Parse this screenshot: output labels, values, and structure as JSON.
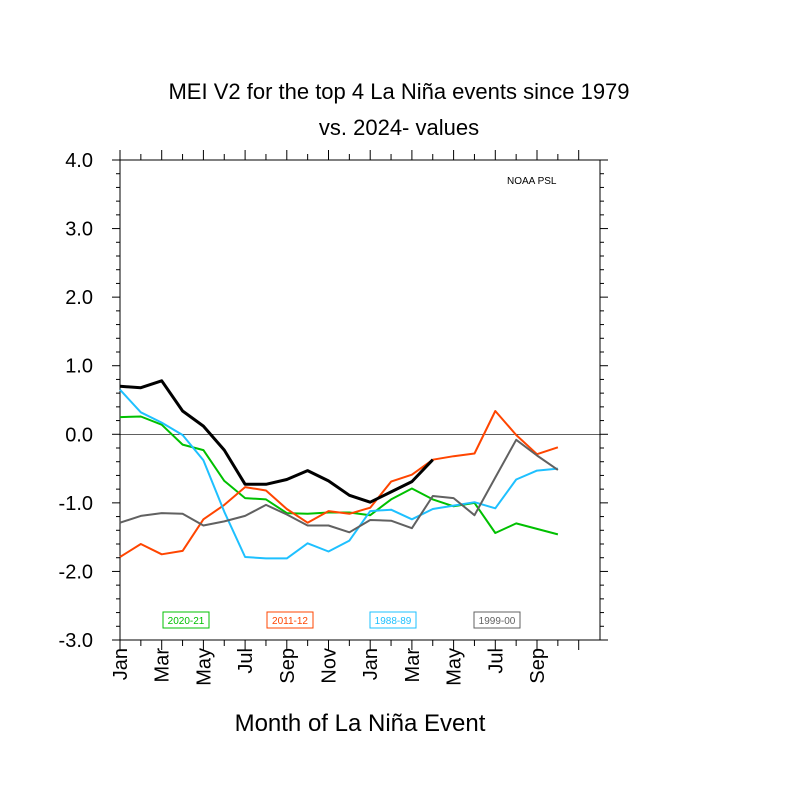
{
  "chart_data": {
    "type": "line",
    "title_line1": "MEI V2 for the top 4 La Niña events since 1979",
    "title_line2": "vs. 2024- values",
    "xlabel": "Month of La Niña Event",
    "credit": "NOAA PSL",
    "ylim": [
      -3.0,
      4.0
    ],
    "yticks": [
      "4.0",
      "3.0",
      "2.0",
      "1.0",
      "0.0",
      "-1.0",
      "-2.0",
      "-3.0"
    ],
    "x_tick_labels": [
      "Jan",
      "Mar",
      "May",
      "Jul",
      "Sep",
      "Nov",
      "Jan",
      "Mar",
      "May",
      "Jul",
      "Sep"
    ],
    "series": [
      {
        "name": "2020-21",
        "color": "#00c000",
        "values": [
          0.25,
          0.26,
          0.14,
          -0.15,
          -0.23,
          -0.68,
          -0.93,
          -0.95,
          -1.15,
          -1.16,
          -1.14,
          -1.14,
          -1.18,
          -0.95,
          -0.79,
          -0.95,
          -1.05,
          -1.0,
          -1.44,
          -1.3,
          -1.38,
          -1.46
        ]
      },
      {
        "name": "2011-12",
        "color": "#ff4500",
        "values": [
          -1.79,
          -1.6,
          -1.75,
          -1.7,
          -1.24,
          -1.03,
          -0.77,
          -0.82,
          -1.09,
          -1.29,
          -1.12,
          -1.16,
          -1.07,
          -0.69,
          -0.59,
          -0.37,
          -0.32,
          -0.28,
          0.34,
          -0.01,
          -0.29,
          -0.19
        ]
      },
      {
        "name": "1988-89",
        "color": "#1ec0ff",
        "values": [
          0.65,
          0.32,
          0.17,
          -0.01,
          -0.38,
          -1.13,
          -1.79,
          -1.81,
          -1.81,
          -1.59,
          -1.71,
          -1.55,
          -1.12,
          -1.1,
          -1.24,
          -1.09,
          -1.04,
          -0.99,
          -1.08,
          -0.66,
          -0.53,
          -0.5
        ]
      },
      {
        "name": "1999-00",
        "color": "#616161",
        "values": [
          -1.29,
          -1.19,
          -1.15,
          -1.16,
          -1.33,
          -1.27,
          -1.19,
          -1.03,
          -1.17,
          -1.33,
          -1.33,
          -1.43,
          -1.25,
          -1.26,
          -1.37,
          -0.9,
          -0.93,
          -1.18,
          -0.63,
          -0.08,
          -0.31,
          -0.52
        ]
      },
      {
        "name": "2024-",
        "color": "#000000",
        "values": [
          0.7,
          0.68,
          0.78,
          0.34,
          0.12,
          -0.23,
          -0.73,
          -0.73,
          -0.66,
          -0.53,
          -0.68,
          -0.89,
          -0.99,
          -0.84,
          -0.69,
          -0.37
        ]
      }
    ]
  }
}
